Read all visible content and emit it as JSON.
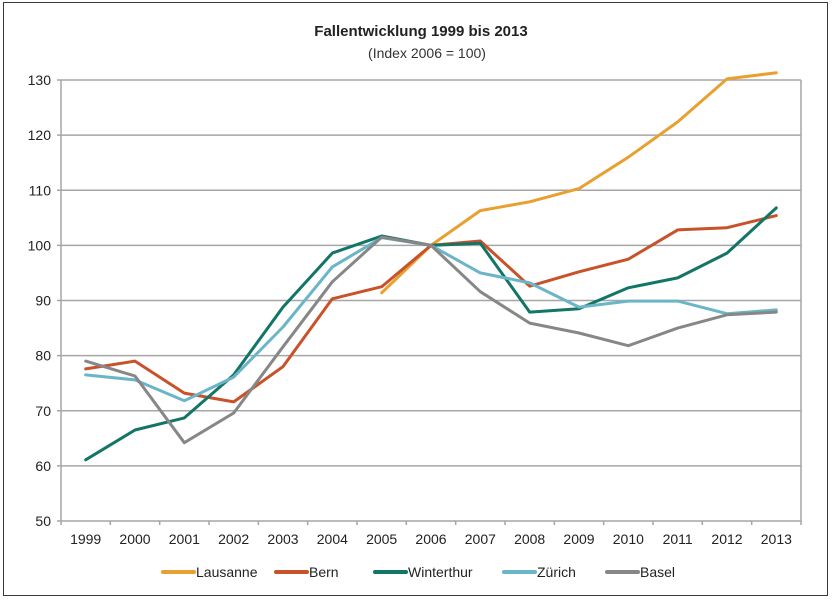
{
  "chart_data": {
    "type": "line",
    "title": "Fallentwicklung 1999 bis 2013",
    "subtitle": "(Index 2006 = 100)",
    "xlabel": "",
    "ylabel": "",
    "ylim": [
      50,
      130
    ],
    "yticks": [
      50,
      60,
      70,
      80,
      90,
      100,
      110,
      120,
      130
    ],
    "grid": true,
    "legend_position": "bottom",
    "categories": [
      "1999",
      "2000",
      "2001",
      "2002",
      "2003",
      "2004",
      "2005",
      "2006",
      "2007",
      "2008",
      "2009",
      "2010",
      "2011",
      "2012",
      "2013"
    ],
    "series": [
      {
        "name": "Lausanne",
        "color": "#E8A030",
        "values": [
          null,
          null,
          null,
          null,
          null,
          null,
          91.4,
          100,
          106.3,
          107.9,
          110.3,
          116.0,
          122.4,
          130.2,
          131.3
        ]
      },
      {
        "name": "Bern",
        "color": "#C8522A",
        "values": [
          77.6,
          79.0,
          73.2,
          71.6,
          78.0,
          90.3,
          92.5,
          100,
          100.8,
          92.6,
          95.2,
          97.5,
          102.8,
          103.2,
          105.4
        ]
      },
      {
        "name": "Winterthur",
        "color": "#137565",
        "values": [
          61.1,
          66.5,
          68.7,
          76.5,
          88.8,
          98.6,
          101.7,
          100,
          100.4,
          87.9,
          88.5,
          92.3,
          94.1,
          98.6,
          106.8
        ]
      },
      {
        "name": "Zürich",
        "color": "#6BB5C8",
        "values": [
          76.5,
          75.6,
          71.8,
          76.1,
          85.2,
          96.1,
          101.4,
          100,
          95.0,
          93.2,
          88.8,
          89.9,
          89.9,
          87.6,
          88.3
        ]
      },
      {
        "name": "Basel",
        "color": "#878787",
        "values": [
          79.0,
          76.3,
          64.2,
          69.6,
          81.6,
          93.4,
          101.5,
          100,
          91.6,
          85.9,
          84.1,
          81.8,
          85.0,
          87.4,
          87.9
        ]
      }
    ]
  }
}
